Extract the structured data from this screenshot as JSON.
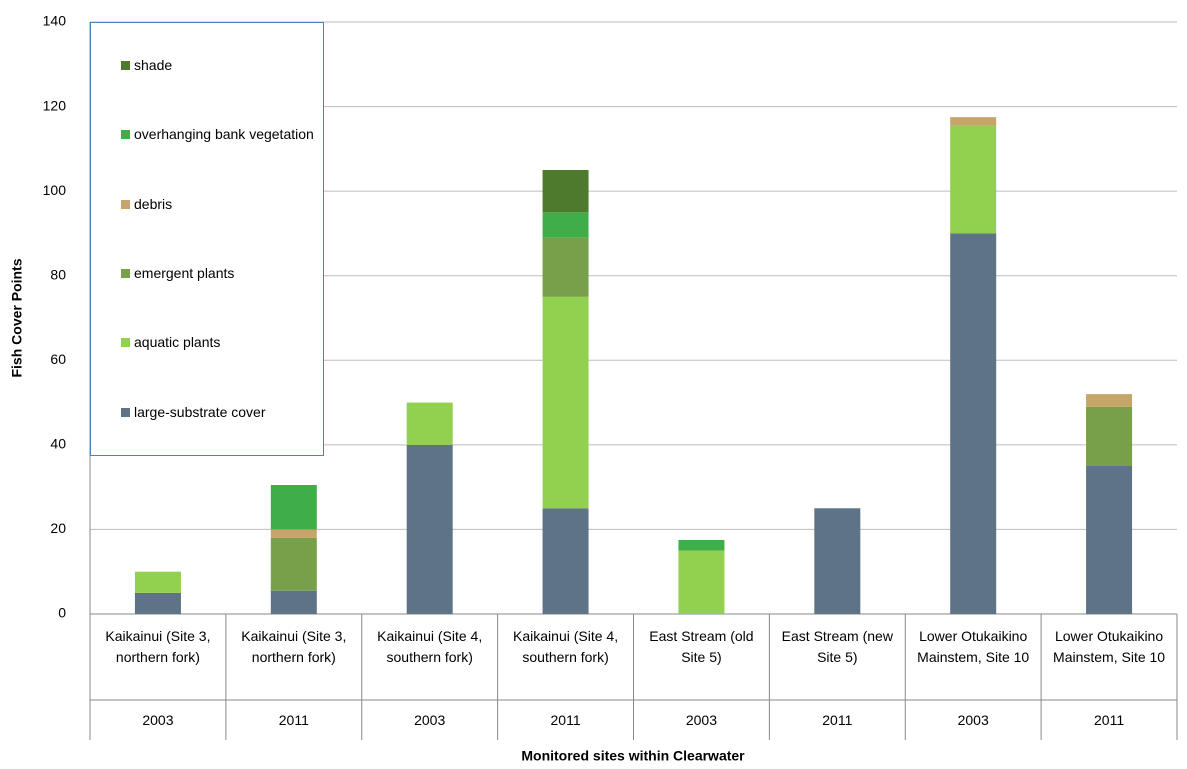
{
  "chart_data": {
    "type": "stacked-bar",
    "y_label": "Fish Cover Points",
    "x_label": "Monitored sites within Clearwater",
    "categories": [
      "Kaikainui (Site 3, northern fork)",
      "Kaikainui (Site 3, northern fork)",
      "Kaikainui (Site 4, southern fork)",
      "Kaikainui (Site 4, southern fork)",
      "East Stream (old Site 5)",
      "East Stream (new Site 5)",
      "Lower Otukaikino Mainstem, Site 10",
      "Lower Otukaikino Mainstem, Site 10"
    ],
    "years": [
      "2003",
      "2011",
      "2003",
      "2011",
      "2003",
      "2011",
      "2003",
      "2011"
    ],
    "series": [
      {
        "name": "large-substrate cover",
        "color": "#5f7386",
        "values": [
          5,
          5.5,
          40,
          25,
          0,
          25,
          90,
          35
        ]
      },
      {
        "name": "aquatic plants",
        "color": "#92d050",
        "values": [
          5,
          0,
          10,
          50,
          15,
          0,
          25.5,
          0
        ]
      },
      {
        "name": "emergent plants",
        "color": "#77a04a",
        "values": [
          0,
          12.5,
          0,
          14,
          0,
          0,
          0,
          14
        ]
      },
      {
        "name": "debris",
        "color": "#c7a46a",
        "values": [
          0,
          2,
          0,
          0,
          0,
          0,
          2,
          3
        ]
      },
      {
        "name": "overhanging bank vegetation",
        "color": "#3fae49",
        "values": [
          0,
          10.5,
          0,
          6,
          2.5,
          0,
          0,
          0
        ]
      },
      {
        "name": "shade",
        "color": "#4e7a2e",
        "values": [
          0,
          0,
          0,
          10,
          0,
          0,
          0,
          0
        ]
      }
    ],
    "ylim": [
      0,
      140
    ],
    "yticks": [
      0,
      20,
      40,
      60,
      80,
      100,
      120,
      140
    ],
    "grid": true
  }
}
